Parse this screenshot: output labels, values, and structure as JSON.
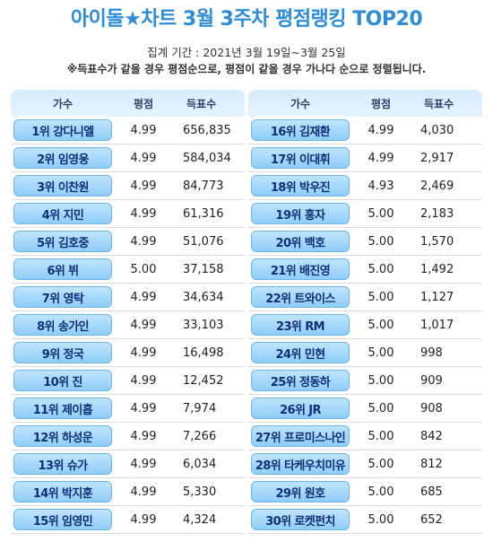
{
  "title": "아이돌★차트 3월 3주차 평점랭킹 TOP20",
  "period": "집계 기간 : 2021년 3월 19일~3월 25일",
  "note": "※득표수가 같을 경우 평점순으로, 평점이 같을 경우 가나다 순으로 정렬됩니다.",
  "headers": {
    "singer": "가수",
    "rating": "평점",
    "votes": "득표수"
  },
  "left_rows": [
    {
      "rank": "1위 강다니엘",
      "rating": "4.99",
      "votes": "656,835"
    },
    {
      "rank": "2위 임영웅",
      "rating": "4.99",
      "votes": "584,034"
    },
    {
      "rank": "3위 이찬원",
      "rating": "4.99",
      "votes": "84,773"
    },
    {
      "rank": "4위 지민",
      "rating": "4.99",
      "votes": "61,316"
    },
    {
      "rank": "5위 김호중",
      "rating": "4.99",
      "votes": "51,076"
    },
    {
      "rank": "6위 뷔",
      "rating": "5.00",
      "votes": "37,158"
    },
    {
      "rank": "7위 영탁",
      "rating": "4.99",
      "votes": "34,634"
    },
    {
      "rank": "8위 송가인",
      "rating": "4.99",
      "votes": "33,103"
    },
    {
      "rank": "9위 정국",
      "rating": "4.99",
      "votes": "16,498"
    },
    {
      "rank": "10위 진",
      "rating": "4.99",
      "votes": "12,452"
    },
    {
      "rank": "11위 제이홉",
      "rating": "4.99",
      "votes": "7,974"
    },
    {
      "rank": "12위 하성운",
      "rating": "4.99",
      "votes": "7,266"
    },
    {
      "rank": "13위 슈가",
      "rating": "4.99",
      "votes": "6,034"
    },
    {
      "rank": "14위 박지훈",
      "rating": "4.99",
      "votes": "5,330"
    },
    {
      "rank": "15위 임영민",
      "rating": "4.99",
      "votes": "4,324"
    }
  ],
  "right_rows": [
    {
      "rank": "16위 김재환",
      "rating": "4.99",
      "votes": "4,030"
    },
    {
      "rank": "17위 이대휘",
      "rating": "4.99",
      "votes": "2,917"
    },
    {
      "rank": "18위 박우진",
      "rating": "4.93",
      "votes": "2,469"
    },
    {
      "rank": "19위 홍자",
      "rating": "5.00",
      "votes": "2,183"
    },
    {
      "rank": "20위 백호",
      "rating": "5.00",
      "votes": "1,570"
    },
    {
      "rank": "21위 배진영",
      "rating": "5.00",
      "votes": "1,492"
    },
    {
      "rank": "22위 트와이스",
      "rating": "5.00",
      "votes": "1,127"
    },
    {
      "rank": "23위 RM",
      "rating": "5.00",
      "votes": "1,017"
    },
    {
      "rank": "24위 민현",
      "rating": "5.00",
      "votes": "998"
    },
    {
      "rank": "25위 정동하",
      "rating": "5.00",
      "votes": "909"
    },
    {
      "rank": "26위 JR",
      "rating": "5.00",
      "votes": "908"
    },
    {
      "rank": "27위 프로미스나인",
      "rating": "5.00",
      "votes": "842"
    },
    {
      "rank": "28위 타케우치미유",
      "rating": "5.00",
      "votes": "812"
    },
    {
      "rank": "29위 원호",
      "rating": "5.00",
      "votes": "685"
    },
    {
      "rank": "30위 로켓펀치",
      "rating": "5.00",
      "votes": "652"
    }
  ]
}
